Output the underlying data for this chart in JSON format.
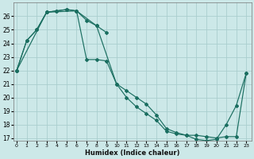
{
  "xlabel": "Humidex (Indice chaleur)",
  "bg_color": "#cce8e8",
  "grid_color": "#aacece",
  "line_color": "#1a6e60",
  "series": [
    {
      "x": [
        0,
        1,
        2,
        3,
        4,
        5,
        6,
        7,
        8,
        9
      ],
      "y": [
        22.0,
        24.2,
        25.0,
        26.3,
        26.4,
        26.5,
        26.4,
        25.7,
        25.3,
        24.8
      ]
    },
    {
      "x": [
        0,
        3,
        4,
        5,
        6,
        8,
        10,
        11,
        12,
        13,
        14,
        15,
        16,
        17,
        18,
        19,
        20,
        21,
        22,
        23
      ],
      "y": [
        22.0,
        26.3,
        26.4,
        26.5,
        26.4,
        25.3,
        21.0,
        20.5,
        20.0,
        19.5,
        18.7,
        17.7,
        17.4,
        17.2,
        17.2,
        17.1,
        17.0,
        17.1,
        17.1,
        21.8
      ]
    },
    {
      "x": [
        0,
        1,
        2,
        3,
        6,
        7,
        8,
        9,
        10,
        11,
        12,
        13,
        14,
        15,
        16,
        17,
        18,
        19,
        20,
        21,
        22,
        23
      ],
      "y": [
        22.0,
        24.2,
        25.0,
        26.3,
        26.4,
        22.8,
        22.8,
        22.7,
        21.0,
        20.0,
        19.3,
        18.8,
        18.3,
        17.5,
        17.3,
        17.2,
        16.9,
        16.8,
        16.9,
        18.0,
        19.4,
        21.8
      ]
    }
  ],
  "xlim": [
    -0.3,
    23.5
  ],
  "ylim": [
    16.8,
    27.0
  ],
  "yticks": [
    17,
    18,
    19,
    20,
    21,
    22,
    23,
    24,
    25,
    26
  ],
  "xticks": [
    0,
    1,
    2,
    3,
    4,
    5,
    6,
    7,
    8,
    9,
    10,
    11,
    12,
    13,
    14,
    15,
    16,
    17,
    18,
    19,
    20,
    21,
    22,
    23
  ]
}
